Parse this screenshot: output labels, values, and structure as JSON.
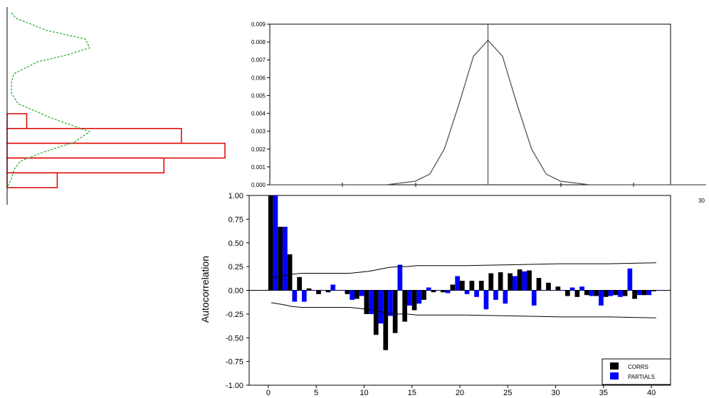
{
  "colors": {
    "corrs": "#000000",
    "partials": "#0000ff",
    "hist_edge": "#dd0000",
    "density_line": "#22aa22",
    "curve": "#555555",
    "axis": "#000000"
  },
  "chart_data": [
    {
      "type": "bar",
      "orientation": "horizontal",
      "xlabel": "",
      "ylabel": "",
      "bins": [
        1,
        2,
        3,
        4,
        5
      ],
      "values": [
        0.09,
        0.8,
        1.0,
        0.72,
        0.23
      ],
      "density_curve": {
        "style": "dashed",
        "y": [
          0.0,
          0.03,
          0.1,
          0.15,
          0.2,
          0.24,
          0.28,
          0.35,
          0.4,
          0.46,
          0.52,
          0.6,
          0.68,
          0.74,
          0.8,
          0.85,
          0.9,
          0.95,
          1.0
        ],
        "density": [
          0.02,
          0.04,
          0.18,
          0.36,
          0.38,
          0.28,
          0.14,
          0.03,
          0.02,
          0.02,
          0.05,
          0.2,
          0.38,
          0.31,
          0.16,
          0.06,
          0.03,
          0.02,
          0.0
        ]
      }
    },
    {
      "type": "line",
      "xlim": [
        0,
        30
      ],
      "ylim": [
        0,
        0.009
      ],
      "yticks": [
        "0.009",
        "0.008",
        "0.007",
        "0.006",
        "0.005",
        "0.004",
        "0.003",
        "0.002",
        "0.001",
        "0.000"
      ],
      "xtick_labels": [
        "30"
      ],
      "vline_x": 15,
      "x": [
        0,
        8,
        10,
        11,
        12,
        13,
        14,
        15,
        16,
        17,
        18,
        19,
        20,
        22,
        30
      ],
      "y": [
        0,
        0,
        0.0002,
        0.0006,
        0.002,
        0.0045,
        0.0072,
        0.0081,
        0.0072,
        0.0045,
        0.002,
        0.0006,
        0.0002,
        0,
        0
      ]
    },
    {
      "type": "bar",
      "ylabel": "Autocorrelation",
      "xlabel": "",
      "ylim": [
        -1,
        1
      ],
      "xlim": [
        -2,
        42
      ],
      "yticks": [
        "1.00",
        "0.75",
        "0.50",
        "0.25",
        "0.00",
        "-0.25",
        "-0.50",
        "-0.75",
        "-1.00"
      ],
      "xticks": [
        "0",
        "5",
        "10",
        "15",
        "20",
        "25",
        "30",
        "35",
        "40"
      ],
      "lags": [
        0,
        1,
        2,
        3,
        4,
        5,
        6,
        7,
        8,
        9,
        10,
        11,
        12,
        13,
        14,
        15,
        16,
        17,
        18,
        19,
        20,
        21,
        22,
        23,
        24,
        25,
        26,
        27,
        28,
        29,
        30,
        31,
        32,
        33,
        34,
        35,
        36,
        37,
        38,
        39,
        40
      ],
      "legend_position": "bottom-right",
      "series": [
        {
          "name": "CORRS",
          "values": [
            1.0,
            0.67,
            0.38,
            0.14,
            0.02,
            -0.04,
            -0.02,
            0.0,
            -0.04,
            -0.09,
            -0.25,
            -0.47,
            -0.63,
            -0.45,
            -0.33,
            -0.21,
            -0.1,
            -0.02,
            -0.02,
            0.06,
            0.1,
            0.1,
            0.1,
            0.18,
            0.19,
            0.18,
            0.22,
            0.21,
            0.13,
            0.08,
            0.04,
            -0.06,
            -0.07,
            -0.05,
            -0.06,
            -0.07,
            -0.05,
            -0.06,
            -0.09,
            -0.05,
            -0.01
          ]
        },
        {
          "name": "PARTIALS",
          "values": [
            1.0,
            0.67,
            -0.12,
            -0.12,
            0.0,
            0.0,
            0.06,
            0.0,
            -0.1,
            -0.06,
            -0.25,
            -0.35,
            -0.27,
            0.27,
            -0.16,
            -0.14,
            0.03,
            0.0,
            -0.03,
            0.15,
            -0.04,
            -0.07,
            -0.2,
            -0.1,
            -0.14,
            0.15,
            0.2,
            -0.16,
            0.0,
            0.0,
            0.0,
            0.03,
            0.04,
            -0.06,
            -0.16,
            -0.06,
            -0.07,
            0.23,
            -0.05,
            -0.05,
            0.0
          ]
        }
      ],
      "confidence_band": {
        "lags": [
          0.3,
          1.5,
          2.5,
          3.5,
          4.5,
          5.5,
          6.5,
          7.5,
          8.5,
          9.5,
          10.5,
          11.5,
          12.5,
          13.5,
          14.5,
          15.5,
          16.5,
          20.5,
          25.5,
          30.5,
          35.5,
          40.5
        ],
        "upper": [
          0.13,
          0.15,
          0.17,
          0.18,
          0.18,
          0.18,
          0.18,
          0.18,
          0.18,
          0.19,
          0.2,
          0.22,
          0.24,
          0.25,
          0.25,
          0.26,
          0.26,
          0.26,
          0.27,
          0.28,
          0.28,
          0.29
        ]
      }
    }
  ]
}
